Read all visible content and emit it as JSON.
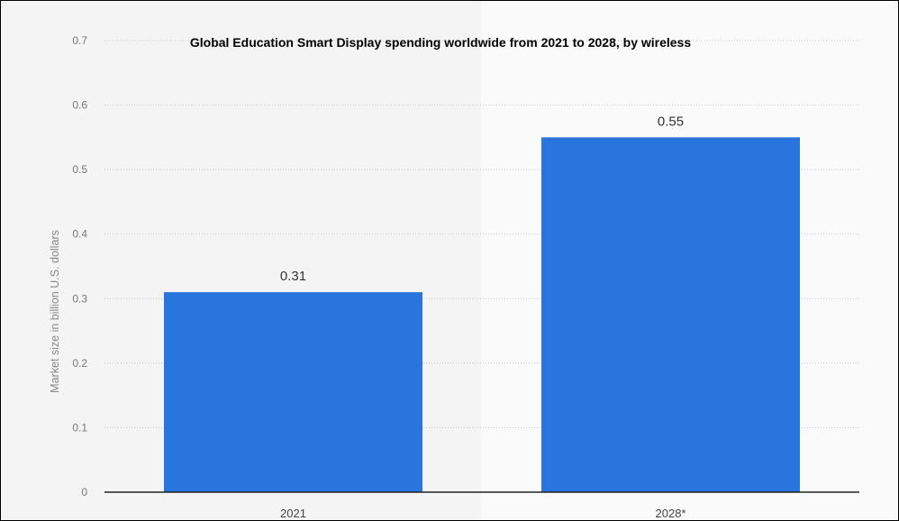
{
  "chart_data": {
    "type": "bar",
    "title": "Global Education Smart Display spending worldwide from 2021 to 2028, by wireless",
    "xlabel": "",
    "ylabel": "Market size in billion U.S. dollars",
    "categories": [
      "2021",
      "2028*"
    ],
    "values": [
      0.31,
      0.55
    ],
    "value_labels": [
      "0.31",
      "0.55"
    ],
    "ylim": [
      0,
      0.7
    ],
    "yticks": [
      "0",
      "0.1",
      "0.2",
      "0.3",
      "0.4",
      "0.5",
      "0.6",
      "0.7"
    ],
    "grid": true,
    "bar_color": "#2775dd"
  }
}
